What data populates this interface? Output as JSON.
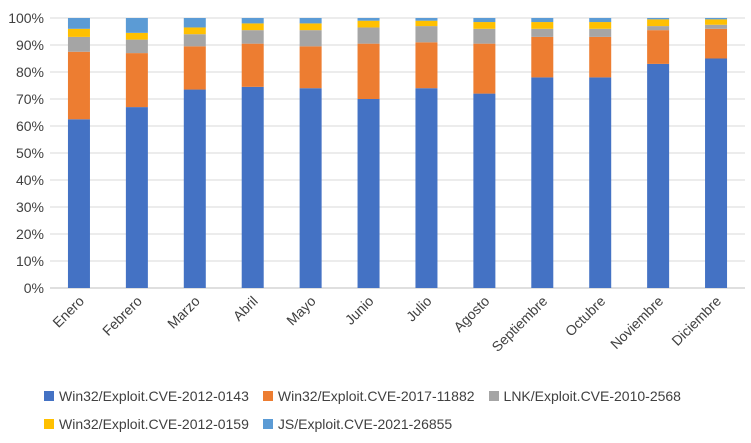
{
  "chart_data": {
    "type": "bar",
    "stacked": true,
    "percent": true,
    "title": "",
    "xlabel": "",
    "ylabel": "",
    "ylim": [
      0,
      100
    ],
    "y_ticks": [
      "0%",
      "10%",
      "20%",
      "30%",
      "40%",
      "50%",
      "60%",
      "70%",
      "80%",
      "90%",
      "100%"
    ],
    "grid": true,
    "legend_position": "bottom",
    "categories": [
      "Enero",
      "Febrero",
      "Marzo",
      "Abril",
      "Mayo",
      "Junio",
      "Julio",
      "Agosto",
      "Septiembre",
      "Octubre",
      "Noviembre",
      "Diciembre"
    ],
    "series": [
      {
        "name": "Win32/Exploit.CVE-2012-0143",
        "color": "#4472C4",
        "values": [
          62.5,
          67,
          73.5,
          74.5,
          74,
          70,
          74,
          72,
          78,
          78,
          83,
          85
        ]
      },
      {
        "name": "Win32/Exploit.CVE-2017-11882",
        "color": "#ED7D31",
        "values": [
          25,
          20,
          16,
          16,
          15.5,
          20.5,
          17,
          18.5,
          15,
          15,
          12.5,
          11
        ]
      },
      {
        "name": "LNK/Exploit.CVE-2010-2568",
        "color": "#A5A5A5",
        "values": [
          5.5,
          5,
          4.5,
          5,
          6,
          6,
          6,
          5.5,
          3,
          3,
          1.5,
          1.5
        ]
      },
      {
        "name": "Win32/Exploit.CVE-2012-0159",
        "color": "#FFC000",
        "values": [
          3,
          2.5,
          2.5,
          2.5,
          2.5,
          2.5,
          2,
          2.5,
          2.5,
          2.5,
          2.5,
          2
        ]
      },
      {
        "name": "JS/Exploit.CVE-2021-26855",
        "color": "#5B9BD5",
        "values": [
          4,
          5.5,
          3.5,
          2,
          2,
          1,
          1,
          1.5,
          1.5,
          1.5,
          0.5,
          0.5
        ]
      }
    ]
  }
}
